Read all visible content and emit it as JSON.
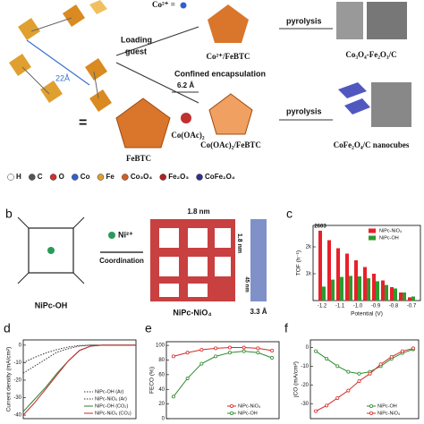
{
  "scheme": {
    "co_ion": "Co²⁺ =",
    "loading": "Loading",
    "guest": "guest",
    "pyrolysis_top": "pyrolysis",
    "loaded_top": "Co²⁺/FeBTC",
    "product_top": "Co₃O₄-Fe₂O₃/C",
    "distance": "22Å",
    "equals": "=",
    "framework": "FeBTC",
    "confined": "Confined encapsulation",
    "pore": "6.2 Å",
    "precursor": "Co(OAc)₂",
    "loaded_bottom": "Co(OAc)₂/FeBTC",
    "pyrolysis_bottom": "pyrolysis",
    "product_bottom": "CoFe₂O₄/C nanocubes",
    "legend": [
      "H",
      "C",
      "O",
      "Co",
      "Fe",
      "Co₃O₄",
      "Fe₂O₃",
      "CoFe₂O₄"
    ]
  },
  "panel_b": {
    "label": "b",
    "ligand": "NiPc-OH",
    "ion": "Ni²⁺",
    "step": "Coordination",
    "product": "NiPc-NiO₄",
    "width": "1.8 nm",
    "height": "1.8 nm",
    "spacing": "45 nm",
    "stacking": "3.3 Å"
  },
  "panel_labels": {
    "c": "c",
    "d": "d",
    "e": "e",
    "f": "f"
  },
  "chart_data": [
    {
      "type": "bar",
      "ylabel": "TOF (h⁻¹)",
      "xlabel": "Potential (V)",
      "x": [
        -1.2,
        -1.15,
        -1.1,
        -1.05,
        -1,
        -0.95,
        -0.9,
        -0.85,
        -0.8,
        -0.75,
        -0.7
      ],
      "xlim": [
        -1.25,
        -0.65
      ],
      "xticks": [
        -1.2,
        -1.1,
        {
          "value": -1,
          "label": "-1.0"
        },
        -0.9,
        -0.8,
        -0.7
      ],
      "ylim": [
        0,
        2800
      ],
      "yticks": [
        {
          "value": 1000,
          "label": "1k"
        },
        {
          "value": 2000,
          "label": "2k"
        }
      ],
      "legend": "upper right",
      "series": [
        {
          "name": "NiPc-NiO₄",
          "color": "#e8202a",
          "values": [
            2603,
            2250,
            1950,
            1750,
            1500,
            1250,
            1000,
            750,
            500,
            300,
            120
          ]
        },
        {
          "name": "NiPc-OH",
          "color": "#2e9a2e",
          "values": [
            520,
            780,
            880,
            920,
            900,
            830,
            720,
            580,
            450,
            300,
            150
          ]
        }
      ]
    },
    {
      "type": "line",
      "ylabel": "Current density (mA/cm²)",
      "x": [
        -1,
        -0.9,
        -0.8,
        -0.7,
        -0.6,
        -0.5,
        -0.4,
        -0.3,
        -0.2,
        -0.1,
        0
      ],
      "xlim": [
        -1,
        0
      ],
      "ylim": [
        -42,
        3
      ],
      "yticks": [
        0,
        -10,
        -20,
        -30,
        -40
      ],
      "legend": "lower right",
      "series": [
        {
          "name": "NiPc-OH (Ar)",
          "color": "#333333",
          "line_style": "dotted",
          "values": [
            -16,
            -12,
            -8,
            -4,
            -2,
            -0.5,
            0,
            0,
            0,
            0,
            0
          ]
        },
        {
          "name": "NiPc-NiO₄ (Ar)",
          "color": "#333333",
          "line_style": "dotted",
          "values": [
            -10,
            -7,
            -4.5,
            -2.5,
            -1,
            -0.2,
            0,
            0,
            0,
            0,
            0
          ]
        },
        {
          "name": "NiPc-OH (CO₂)",
          "color": "#2e7d2e",
          "values": [
            -38,
            -31,
            -24,
            -16,
            -9,
            -3,
            -0.5,
            0,
            0,
            0,
            0
          ]
        },
        {
          "name": "NiPc-NiO₄ (CO₂)",
          "color": "#c0282a",
          "values": [
            -40,
            -33,
            -25,
            -17,
            -9,
            -3,
            -0.5,
            0,
            0,
            0,
            0
          ]
        }
      ]
    },
    {
      "type": "line",
      "ylabel": "FECO (%)",
      "x": [
        -1.2,
        -1.1,
        -1,
        -0.9,
        -0.8,
        -0.7,
        -0.6,
        -0.5
      ],
      "xlim": [
        -1.25,
        -0.45
      ],
      "ylim": [
        0,
        105
      ],
      "yticks": [
        0,
        20,
        40,
        60,
        80,
        100
      ],
      "legend": "lower right",
      "series": [
        {
          "name": "NiPc-NiO₄",
          "color": "#d42a2a",
          "marker": "circle",
          "values": [
            85,
            90,
            94,
            96,
            97,
            97,
            96,
            93
          ]
        },
        {
          "name": "NiPc-OH",
          "color": "#2e8b2e",
          "marker": "circle",
          "values": [
            30,
            55,
            75,
            85,
            90,
            92,
            90,
            83
          ]
        }
      ]
    },
    {
      "type": "line",
      "ylabel": "jCO (mA/cm²)",
      "x": [
        -1.2,
        -1.1,
        -1,
        -0.9,
        -0.8,
        -0.7,
        -0.6,
        -0.5,
        -0.4,
        -0.3
      ],
      "xlim": [
        -1.25,
        -0.25
      ],
      "ylim": [
        -38,
        4
      ],
      "yticks": [
        0,
        -10,
        -20,
        -30
      ],
      "legend": "lower right",
      "series": [
        {
          "name": "NiPc-OH",
          "color": "#2e8b2e",
          "marker": "circle",
          "values": [
            -2,
            -6,
            -10,
            -13,
            -14,
            -13,
            -10,
            -6,
            -3,
            -1
          ]
        },
        {
          "name": "NiPc-NiO₄",
          "color": "#d42a2a",
          "marker": "circle",
          "values": [
            -34,
            -31,
            -27,
            -23,
            -18,
            -14,
            -9,
            -5,
            -2,
            -0.5
          ]
        }
      ]
    }
  ]
}
